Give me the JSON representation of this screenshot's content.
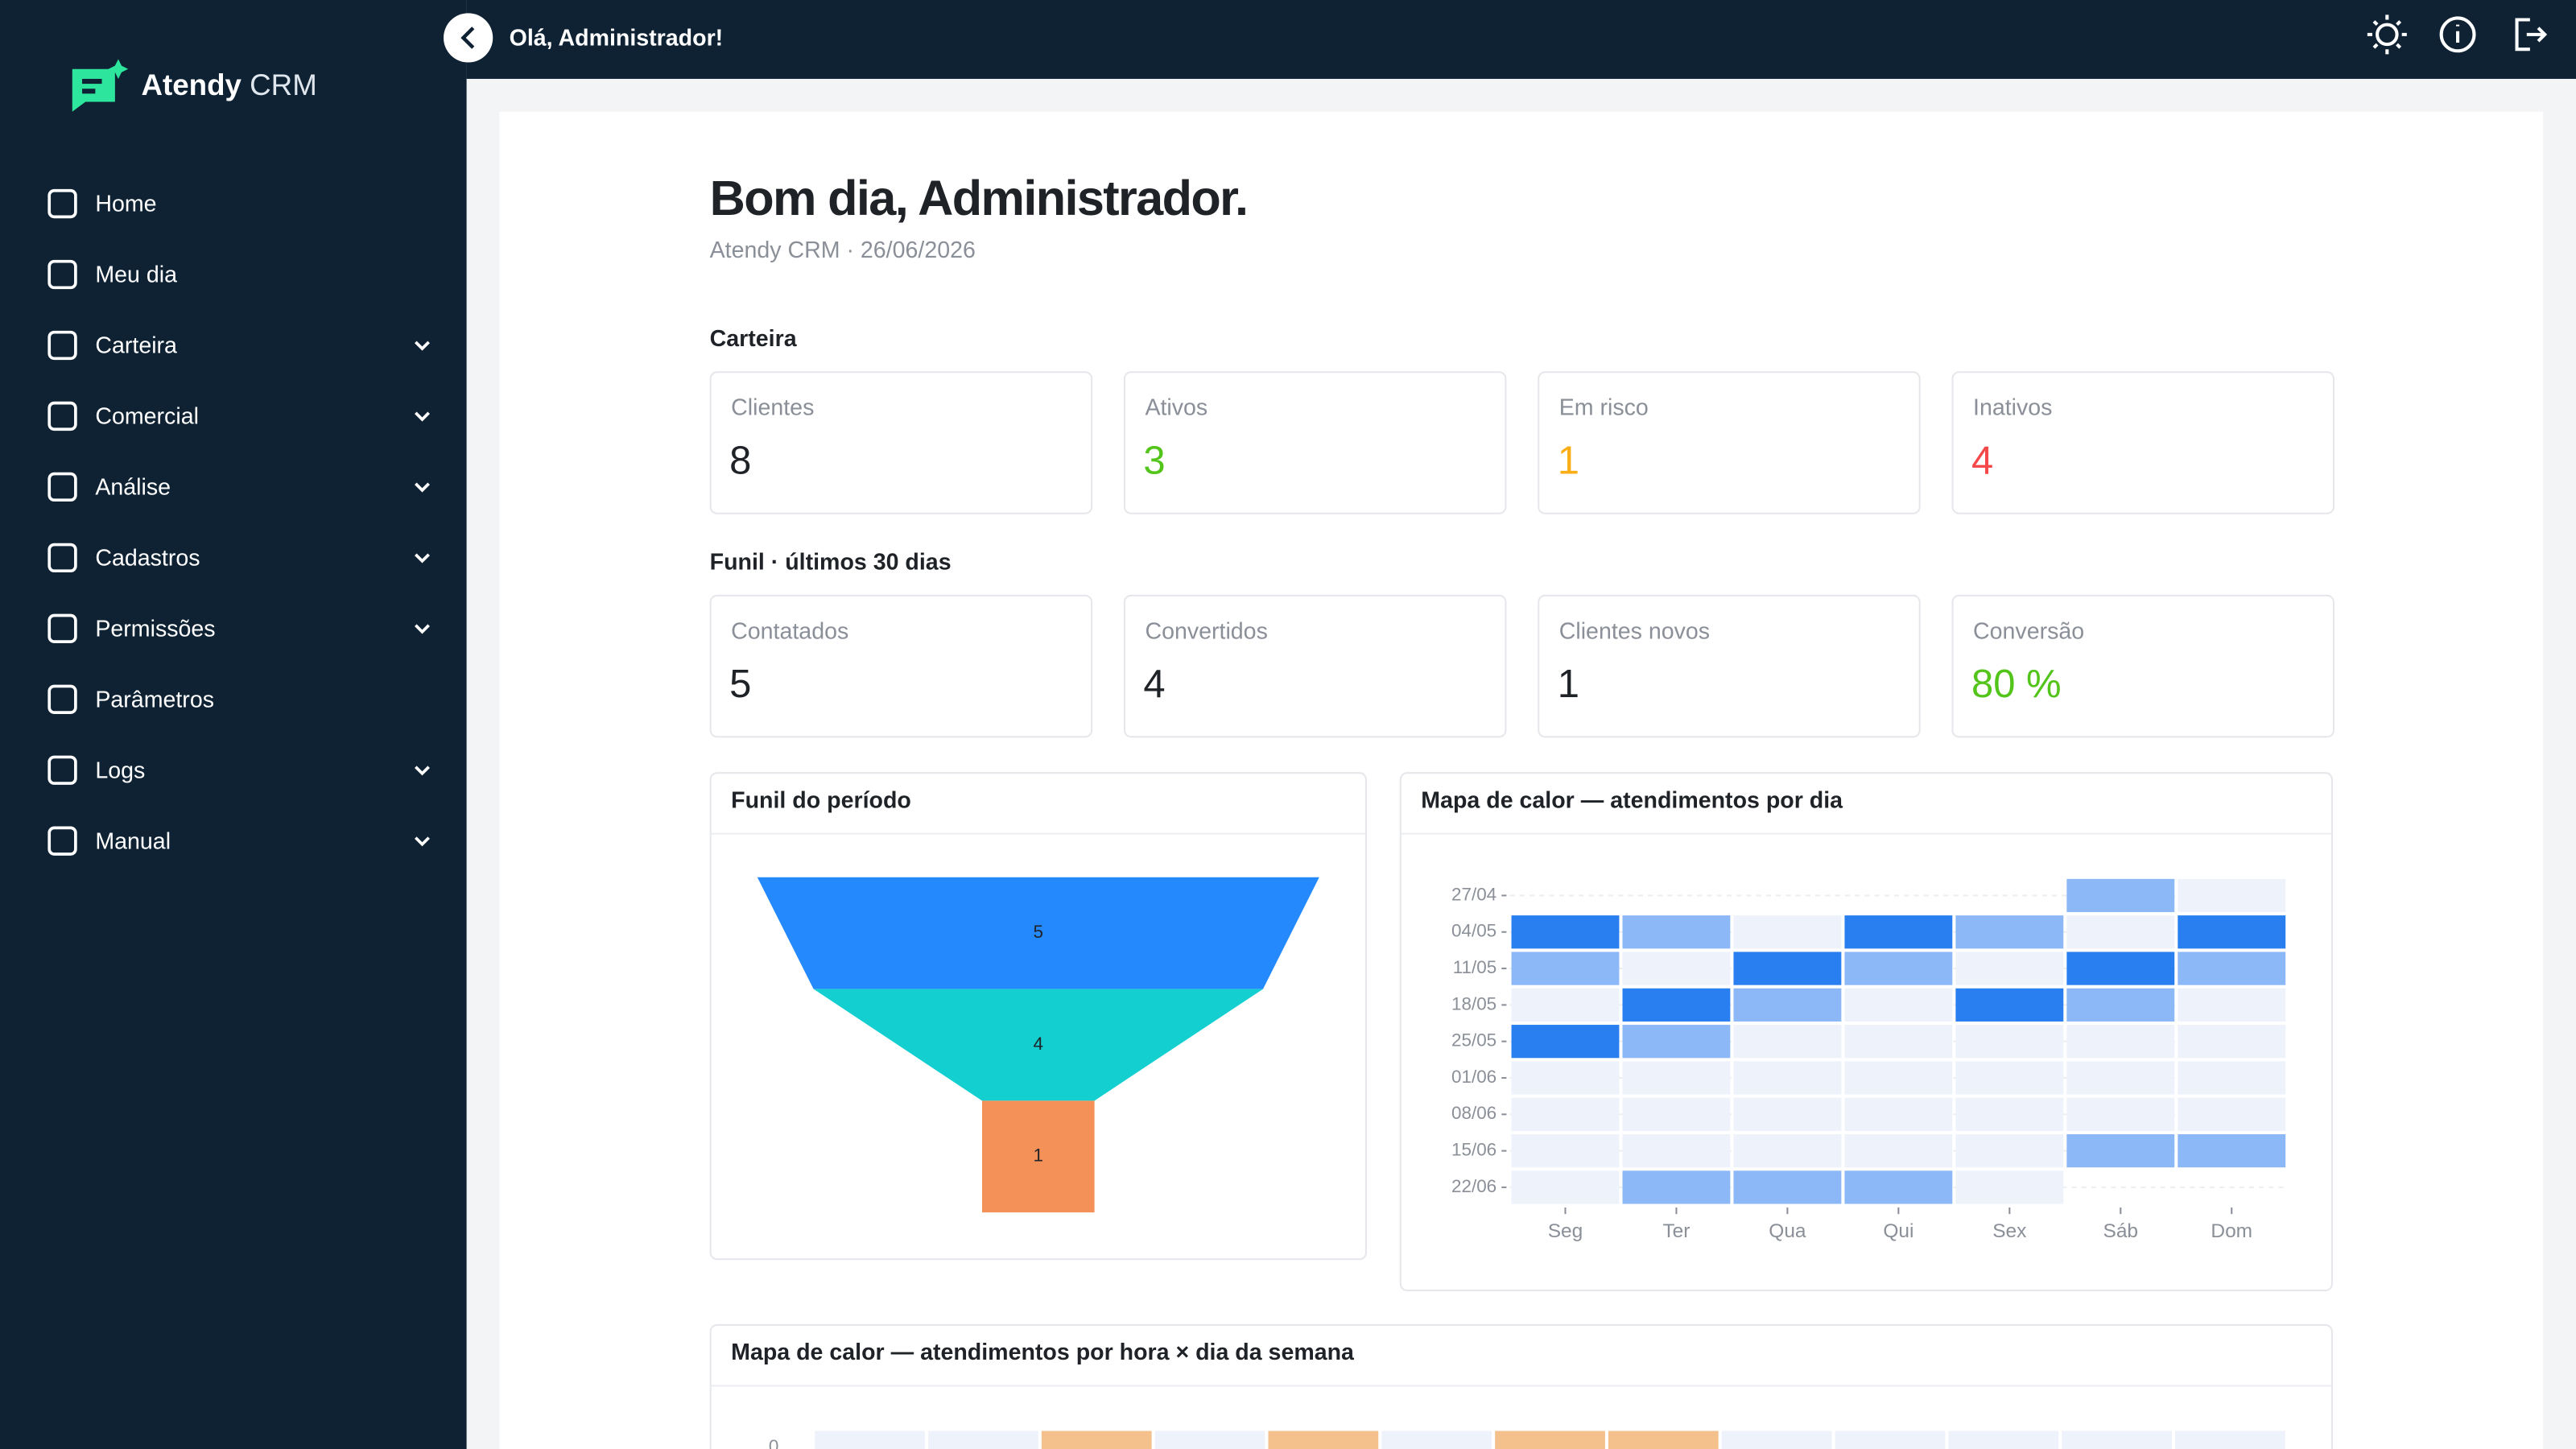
{
  "brand": {
    "name": "Atendy",
    "suffix": "CRM"
  },
  "topbar": {
    "greeting": "Olá, Administrador!"
  },
  "nav": [
    {
      "label": "Home",
      "submenu": false
    },
    {
      "label": "Meu dia",
      "submenu": false
    },
    {
      "label": "Carteira",
      "submenu": true
    },
    {
      "label": "Comercial",
      "submenu": true
    },
    {
      "label": "Análise",
      "submenu": true
    },
    {
      "label": "Cadastros",
      "submenu": true
    },
    {
      "label": "Permissões",
      "submenu": true
    },
    {
      "label": "Parâmetros",
      "submenu": false
    },
    {
      "label": "Logs",
      "submenu": true
    },
    {
      "label": "Manual",
      "submenu": true
    }
  ],
  "header": {
    "title": "Bom dia, Administrador.",
    "subtitle": "Atendy CRM · 26/06/2026"
  },
  "sections": [
    {
      "title": "Carteira",
      "cards": [
        {
          "label": "Clientes",
          "value": 8,
          "color": "#1f2328"
        },
        {
          "label": "Ativos",
          "value": 3,
          "color": "#52c41a"
        },
        {
          "label": "Em risco",
          "value": 1,
          "color": "#faad14"
        },
        {
          "label": "Inativos",
          "value": 4,
          "color": "#f5484a"
        }
      ]
    },
    {
      "title": "Funil · últimos 30 dias",
      "cards": [
        {
          "label": "Contatados",
          "value": 5,
          "color": "#1f2328"
        },
        {
          "label": "Convertidos",
          "value": 4,
          "color": "#1f2328"
        },
        {
          "label": "Clientes novos",
          "value": 1,
          "color": "#1f2328"
        },
        {
          "label": "Conversão",
          "value": "80 %",
          "color": "#52c41a"
        }
      ]
    }
  ],
  "funnel": {
    "title": "Funil do período",
    "values": [
      5,
      4,
      1
    ],
    "colors": [
      "#2389fd",
      "#13cfcf",
      "#f39159"
    ]
  },
  "heatmap": {
    "title": "Mapa de calor — atendimentos por dia",
    "rows": [
      "27/04",
      "04/05",
      "11/05",
      "18/05",
      "25/05",
      "01/06",
      "08/06",
      "15/06",
      "22/06"
    ],
    "columns": [
      "Seg",
      "Ter",
      "Qua",
      "Qui",
      "Sex",
      "Sáb",
      "Dom"
    ],
    "colors": [
      "#eef2fb",
      "#8db8f7",
      "#2a7ff0"
    ],
    "values": [
      [
        null,
        null,
        null,
        null,
        null,
        1,
        0
      ],
      [
        2,
        1,
        0,
        2,
        1,
        0,
        2
      ],
      [
        1,
        0,
        2,
        1,
        0,
        2,
        1
      ],
      [
        0,
        2,
        1,
        0,
        2,
        1,
        0
      ],
      [
        2,
        1,
        0,
        0,
        0,
        0,
        0
      ],
      [
        0,
        0,
        0,
        0,
        0,
        0,
        0
      ],
      [
        0,
        0,
        0,
        0,
        0,
        0,
        0
      ],
      [
        0,
        0,
        0,
        0,
        0,
        1,
        1
      ],
      [
        0,
        1,
        1,
        1,
        0,
        null,
        null
      ]
    ]
  },
  "hour_heatmap": {
    "title": "Mapa de calor — atendimentos por hora × dia da semana",
    "rows": [
      "0"
    ],
    "colors": [
      "#eef2fb",
      "#f4c08c"
    ],
    "values": [
      [
        0,
        0,
        1,
        0,
        1,
        0,
        1,
        1,
        0,
        0,
        0,
        0,
        0
      ]
    ]
  }
}
